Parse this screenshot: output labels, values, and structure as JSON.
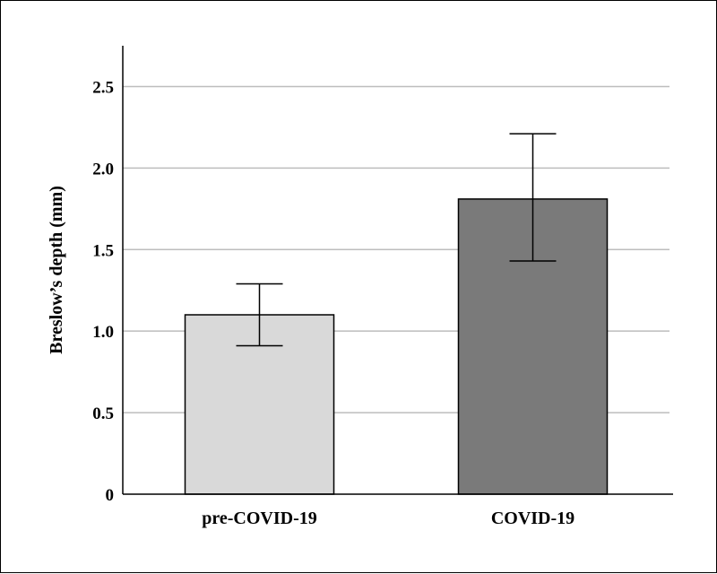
{
  "chart_data": {
    "type": "bar",
    "title": "",
    "xlabel": "",
    "ylabel": "Breslow’s depth (mm)",
    "categories": [
      "pre-COVID-19",
      "COVID-19"
    ],
    "values": [
      1.1,
      1.81
    ],
    "error_low": [
      0.91,
      1.43
    ],
    "error_high": [
      1.29,
      2.21
    ],
    "bar_colors": [
      "#d9d9d9",
      "#7a7a7a"
    ],
    "ylim": [
      0,
      2.75
    ],
    "yticks": [
      0,
      0.5,
      1.0,
      1.5,
      2.0,
      2.5
    ],
    "ytick_labels": [
      "0",
      "0.5",
      "1.0",
      "1.5",
      "2.0",
      "2.5"
    ],
    "grid": "horizontal",
    "legend": "none"
  }
}
